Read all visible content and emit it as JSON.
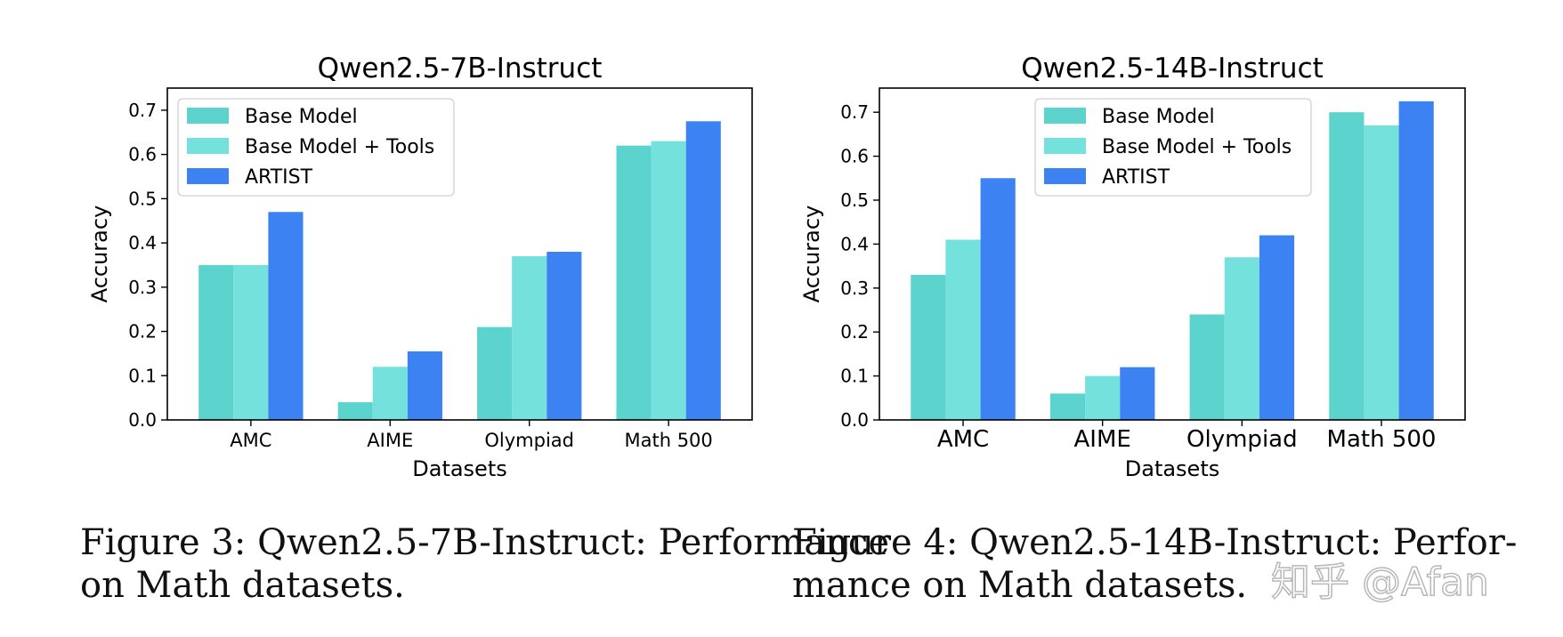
{
  "chart_data": [
    {
      "type": "bar",
      "title": "Qwen2.5-7B-Instruct",
      "xlabel": "Datasets",
      "ylabel": "Accuracy",
      "categories": [
        "AMC",
        "AIME",
        "Olympiad",
        "Math 500"
      ],
      "series": [
        {
          "name": "Base Model",
          "color": "#5cd3cd",
          "values": [
            0.35,
            0.04,
            0.21,
            0.62
          ]
        },
        {
          "name": "Base Model + Tools",
          "color": "#74e1dd",
          "values": [
            0.35,
            0.12,
            0.37,
            0.63
          ]
        },
        {
          "name": "ARTIST",
          "color": "#3d82f2",
          "values": [
            0.47,
            0.155,
            0.38,
            0.675
          ]
        }
      ],
      "ylim": [
        0,
        0.75
      ],
      "yticks": [
        0.0,
        0.1,
        0.2,
        0.3,
        0.4,
        0.5,
        0.6,
        0.7
      ],
      "ytick_labels": [
        "0.0",
        "0.1",
        "0.2",
        "0.3",
        "0.4",
        "0.5",
        "0.6",
        "0.7"
      ],
      "grid": false,
      "legend": "top-left"
    },
    {
      "type": "bar",
      "title": "Qwen2.5-14B-Instruct",
      "xlabel": "Datasets",
      "ylabel": "Accuracy",
      "categories": [
        "AMC",
        "AIME",
        "Olympiad",
        "Math 500"
      ],
      "series": [
        {
          "name": "Base Model",
          "color": "#5cd3cd",
          "values": [
            0.33,
            0.06,
            0.24,
            0.7
          ]
        },
        {
          "name": "Base Model + Tools",
          "color": "#74e1dd",
          "values": [
            0.41,
            0.1,
            0.37,
            0.67
          ]
        },
        {
          "name": "ARTIST",
          "color": "#3d82f2",
          "values": [
            0.55,
            0.12,
            0.42,
            0.725
          ]
        }
      ],
      "ylim": [
        0,
        0.755
      ],
      "yticks": [
        0.0,
        0.1,
        0.2,
        0.3,
        0.4,
        0.5,
        0.6,
        0.7
      ],
      "ytick_labels": [
        "0.0",
        "0.1",
        "0.2",
        "0.3",
        "0.4",
        "0.5",
        "0.6",
        "0.7"
      ],
      "grid": false,
      "legend": "top-center"
    }
  ],
  "captions": {
    "left": {
      "line1": "Figure 3: Qwen2.5-7B-Instruct: Performance",
      "line2": "on Math datasets."
    },
    "right": {
      "line1": "Figure  4:    Qwen2.5-14B-Instruct:    Perfor-",
      "line2": "mance on Math datasets."
    }
  },
  "watermark": "知乎 @Afan"
}
